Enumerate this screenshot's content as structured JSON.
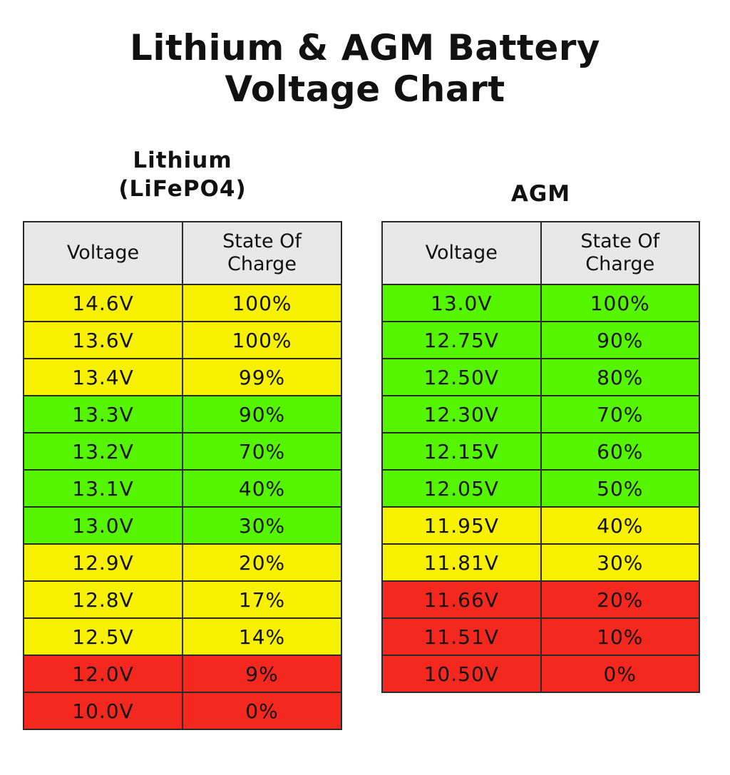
{
  "title_lines": [
    "Lithium & AGM Battery",
    "Voltage Chart"
  ],
  "colors": {
    "yellow": "#f7f100",
    "green": "#55f500",
    "red": "#f52820",
    "header": "#e8e8e8"
  },
  "chart_data": [
    {
      "type": "table",
      "title_lines": [
        "Lithium",
        "(LiFePO4)"
      ],
      "columns": [
        [
          "Voltage"
        ],
        [
          "State Of",
          "Charge"
        ]
      ],
      "rows": [
        {
          "voltage": "14.6V",
          "charge": "100%",
          "band": "yellow"
        },
        {
          "voltage": "13.6V",
          "charge": "100%",
          "band": "yellow"
        },
        {
          "voltage": "13.4V",
          "charge": "99%",
          "band": "yellow"
        },
        {
          "voltage": "13.3V",
          "charge": "90%",
          "band": "green"
        },
        {
          "voltage": "13.2V",
          "charge": "70%",
          "band": "green"
        },
        {
          "voltage": "13.1V",
          "charge": "40%",
          "band": "green"
        },
        {
          "voltage": "13.0V",
          "charge": "30%",
          "band": "green"
        },
        {
          "voltage": "12.9V",
          "charge": "20%",
          "band": "yellow"
        },
        {
          "voltage": "12.8V",
          "charge": "17%",
          "band": "yellow"
        },
        {
          "voltage": "12.5V",
          "charge": "14%",
          "band": "yellow"
        },
        {
          "voltage": "12.0V",
          "charge": "9%",
          "band": "red"
        },
        {
          "voltage": "10.0V",
          "charge": "0%",
          "band": "red"
        }
      ]
    },
    {
      "type": "table",
      "title_lines": [
        "AGM"
      ],
      "columns": [
        [
          "Voltage"
        ],
        [
          "State Of",
          "Charge"
        ]
      ],
      "rows": [
        {
          "voltage": "13.0V",
          "charge": "100%",
          "band": "green"
        },
        {
          "voltage": "12.75V",
          "charge": "90%",
          "band": "green"
        },
        {
          "voltage": "12.50V",
          "charge": "80%",
          "band": "green"
        },
        {
          "voltage": "12.30V",
          "charge": "70%",
          "band": "green"
        },
        {
          "voltage": "12.15V",
          "charge": "60%",
          "band": "green"
        },
        {
          "voltage": "12.05V",
          "charge": "50%",
          "band": "green"
        },
        {
          "voltage": "11.95V",
          "charge": "40%",
          "band": "yellow"
        },
        {
          "voltage": "11.81V",
          "charge": "30%",
          "band": "yellow"
        },
        {
          "voltage": "11.66V",
          "charge": "20%",
          "band": "red"
        },
        {
          "voltage": "11.51V",
          "charge": "10%",
          "band": "red"
        },
        {
          "voltage": "10.50V",
          "charge": "0%",
          "band": "red"
        }
      ]
    }
  ]
}
